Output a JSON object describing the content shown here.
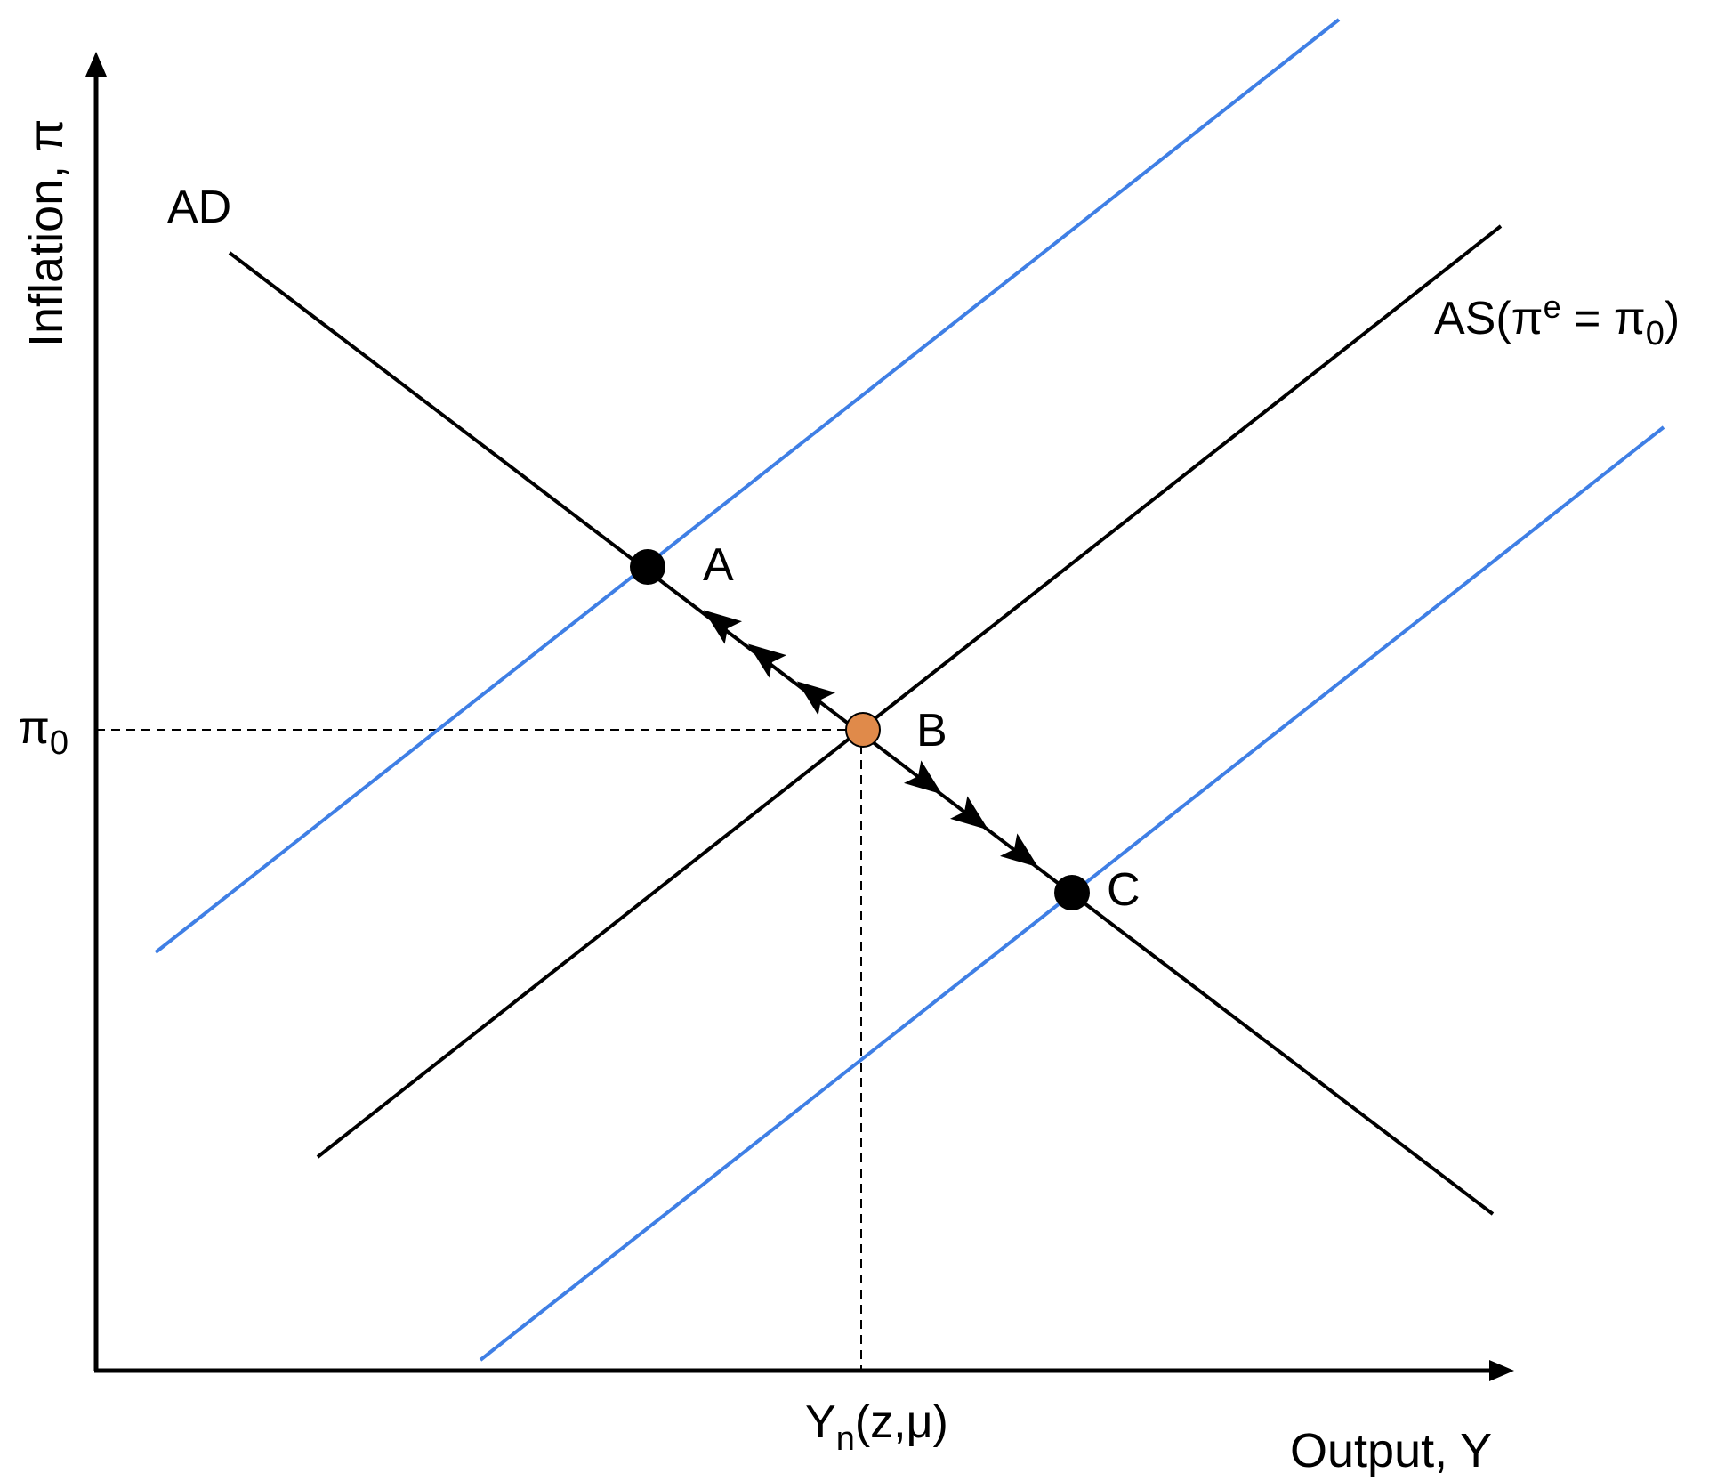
{
  "title": "",
  "axes": {
    "y_label": "Inflation, π",
    "x_label": "Output, Y"
  },
  "ticks": {
    "pi0": {
      "base": "π",
      "sub": "0"
    },
    "yn": {
      "base": "Y",
      "sub": "n",
      "rest": "(z,μ)"
    }
  },
  "curves": {
    "ad_label": "AD",
    "as_label": {
      "prefix": "AS(π",
      "sup": "e",
      "mid": " = π",
      "sub": "0",
      "suffix": ")"
    }
  },
  "points": {
    "a": "A",
    "b": "B",
    "c": "C"
  },
  "colors": {
    "axis": "#000000",
    "ad_curve": "#000000",
    "as_curve": "#000000",
    "shifted_as": "#3f7fe5",
    "point": "#000000",
    "equilibrium": "#e08a4a"
  },
  "icons": {
    "arrows_toward_a": "arrow-up-left-icon",
    "arrows_toward_c": "arrow-down-right-icon"
  }
}
